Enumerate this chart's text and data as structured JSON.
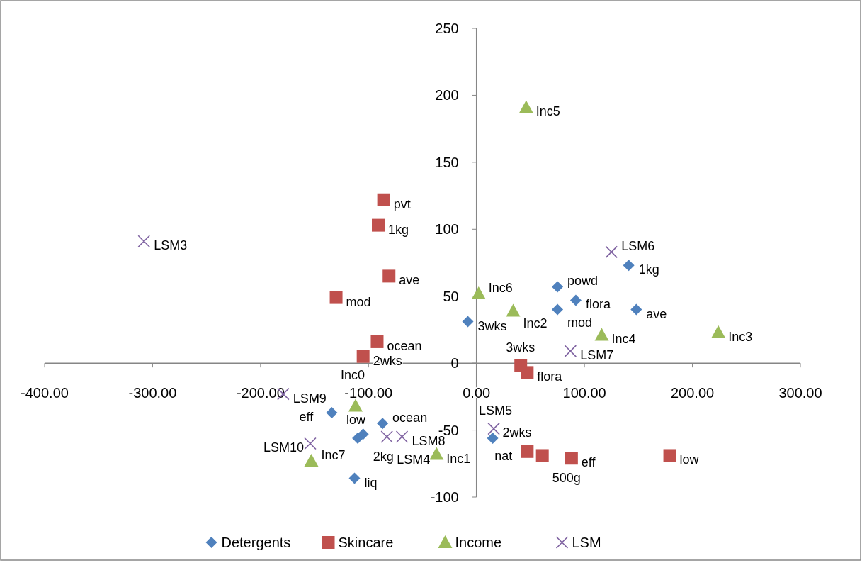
{
  "chart_data": {
    "type": "scatter",
    "xlim": [
      -400,
      300
    ],
    "ylim": [
      -100,
      250
    ],
    "xticks": [
      {
        "value": -400,
        "label": "-400.00"
      },
      {
        "value": -300,
        "label": "-300.00"
      },
      {
        "value": -200,
        "label": "-200.00"
      },
      {
        "value": -100,
        "label": "-100.00"
      },
      {
        "value": 0,
        "label": "0.00"
      },
      {
        "value": 100,
        "label": "100.00"
      },
      {
        "value": 200,
        "label": "200.00"
      },
      {
        "value": 300,
        "label": "300.00"
      }
    ],
    "yticks": [
      -100,
      -50,
      0,
      50,
      100,
      150,
      200,
      250
    ],
    "grid": false,
    "legend": "bottom",
    "series": [
      {
        "name": "Detergents",
        "color": "#4f81bd",
        "marker": "diamond",
        "x": [
          -8,
          75,
          92,
          75,
          141,
          148,
          -134,
          -87,
          -105,
          -110,
          -113,
          15
        ],
        "values": [
          31,
          57,
          47,
          40,
          73,
          40,
          -37,
          -45,
          -53,
          -56,
          -86,
          -56
        ]
      },
      {
        "name": "Skincare",
        "color": "#c0504d",
        "marker": "square",
        "x": [
          -86,
          -91,
          -81,
          -130,
          -92,
          -105,
          41,
          47,
          47,
          61,
          88,
          179
        ],
        "values": [
          122,
          103,
          65,
          49,
          16,
          5,
          -2,
          -7,
          -66,
          -69,
          -71,
          -69
        ]
      },
      {
        "name": "Income",
        "color": "#9bbb59",
        "marker": "triangle",
        "x": [
          46,
          2,
          34,
          116,
          224,
          -112,
          -37,
          -153
        ],
        "values": [
          191,
          52,
          39,
          21,
          23,
          -32,
          -68,
          -73
        ]
      },
      {
        "name": "LSM",
        "color": "#8064a2",
        "marker": "cross",
        "x": [
          -308,
          125,
          87,
          -179,
          -154,
          -83,
          -69,
          16
        ],
        "values": [
          91,
          83,
          9,
          -23,
          -60,
          -55,
          -55,
          -49
        ]
      }
    ],
    "annotations": [
      {
        "text": "3wks",
        "x": -8,
        "y": 31
      },
      {
        "text": "powd",
        "x": 75,
        "y": 57
      },
      {
        "text": "flora",
        "x": 92,
        "y": 47
      },
      {
        "text": "mod",
        "x": 75,
        "y": 40
      },
      {
        "text": "1kg",
        "x": 141,
        "y": 73
      },
      {
        "text": "ave",
        "x": 148,
        "y": 40
      },
      {
        "text": "eff",
        "x": -134,
        "y": -37
      },
      {
        "text": "ocean",
        "x": -87,
        "y": -45
      },
      {
        "text": "2kg",
        "x": -105,
        "y": -53
      },
      {
        "text": "low",
        "x": -110,
        "y": -56
      },
      {
        "text": "liq",
        "x": -113,
        "y": -86
      },
      {
        "text": "2wks",
        "x": 15,
        "y": -56
      },
      {
        "text": "pvt",
        "x": -86,
        "y": 122
      },
      {
        "text": "1kg",
        "x": -91,
        "y": 103
      },
      {
        "text": "ave",
        "x": -81,
        "y": 65
      },
      {
        "text": "mod",
        "x": -130,
        "y": 49
      },
      {
        "text": "ocean",
        "x": -92,
        "y": 16
      },
      {
        "text": "2wks",
        "x": -105,
        "y": 5
      },
      {
        "text": "3wks",
        "x": 41,
        "y": -2
      },
      {
        "text": "flora",
        "x": 47,
        "y": -7
      },
      {
        "text": "nat",
        "x": 47,
        "y": -66
      },
      {
        "text": "500g",
        "x": 61,
        "y": -69
      },
      {
        "text": "eff",
        "x": 88,
        "y": -71
      },
      {
        "text": "low",
        "x": 179,
        "y": -69
      },
      {
        "text": "Inc5",
        "x": 46,
        "y": 191
      },
      {
        "text": "Inc6",
        "x": 2,
        "y": 52
      },
      {
        "text": "Inc2",
        "x": 34,
        "y": 39
      },
      {
        "text": "Inc4",
        "x": 116,
        "y": 21
      },
      {
        "text": "Inc3",
        "x": 224,
        "y": 23
      },
      {
        "text": "Inc0",
        "x": -112,
        "y": -32
      },
      {
        "text": "Inc1",
        "x": -37,
        "y": -68
      },
      {
        "text": "Inc7",
        "x": -153,
        "y": -73
      },
      {
        "text": "LSM3",
        "x": -308,
        "y": 91
      },
      {
        "text": "LSM6",
        "x": 125,
        "y": 83
      },
      {
        "text": "LSM7",
        "x": 87,
        "y": 9
      },
      {
        "text": "LSM9",
        "x": -179,
        "y": -23
      },
      {
        "text": "LSM10",
        "x": -154,
        "y": -60
      },
      {
        "text": "LSM4",
        "x": -83,
        "y": -55
      },
      {
        "text": "LSM8",
        "x": -69,
        "y": -55
      },
      {
        "text": "LSM5",
        "x": 16,
        "y": -49
      }
    ]
  }
}
